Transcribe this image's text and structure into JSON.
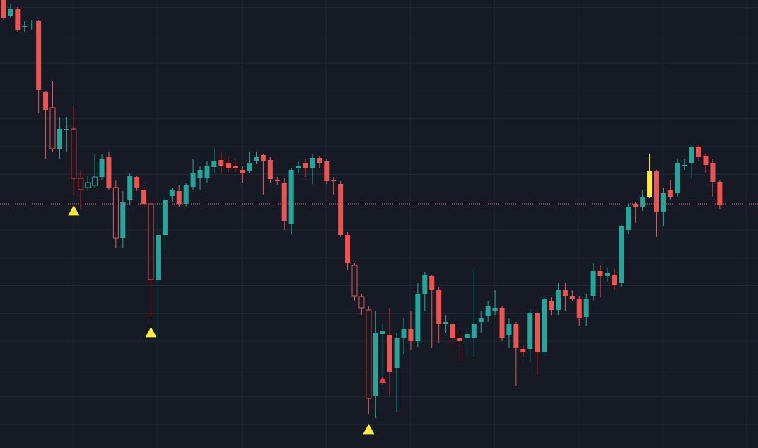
{
  "chart_data": {
    "type": "candlestick",
    "ylim": [
      0,
      633
    ],
    "up_color": "#26a69a",
    "down_color": "#ef5350",
    "grid": true,
    "hollow": [
      7,
      10,
      11,
      12,
      13,
      16,
      21,
      50,
      51,
      52
    ],
    "highlight": {
      "index": 92,
      "color": "#ffeb3b"
    },
    "price_line": 345,
    "price_line_color": "#ef5350",
    "open": [
      633,
      611,
      620,
      596,
      598,
      603,
      503,
      481,
      423,
      451,
      451,
      381,
      368,
      371,
      383,
      411,
      368,
      297,
      351,
      383,
      365,
      345,
      238,
      301,
      356,
      363,
      345,
      369,
      381,
      381,
      397,
      407,
      403,
      399,
      393,
      391,
      405,
      414,
      407,
      378,
      375,
      317,
      395,
      403,
      396,
      410,
      405,
      378,
      373,
      301,
      258,
      214,
      195,
      73,
      161,
      160,
      113,
      155,
      168,
      151,
      218,
      243,
      223,
      175,
      175,
      156,
      155,
      155,
      178,
      187,
      193,
      198,
      159,
      175,
      140,
      140,
      191,
      135,
      208,
      195,
      223,
      215,
      211,
      185,
      215,
      250,
      243,
      245,
      233,
      308,
      345,
      341,
      355,
      391,
      333,
      365,
      360,
      400,
      403,
      426,
      413,
      403,
      376
    ],
    "high": [
      633,
      628,
      623,
      603,
      605,
      605,
      505,
      518,
      468,
      468,
      483,
      393,
      385,
      415,
      415,
      418,
      378,
      363,
      388,
      385,
      371,
      353,
      318,
      358,
      368,
      371,
      375,
      408,
      398,
      405,
      423,
      418,
      413,
      408,
      398,
      418,
      418,
      415,
      411,
      383,
      381,
      395,
      405,
      408,
      415,
      413,
      408,
      383,
      377,
      305,
      261,
      218,
      201,
      193,
      175,
      198,
      163,
      183,
      193,
      233,
      248,
      245,
      228,
      188,
      178,
      163,
      168,
      251,
      193,
      208,
      223,
      201,
      183,
      178,
      145,
      198,
      195,
      215,
      213,
      233,
      233,
      223,
      215,
      218,
      261,
      258,
      255,
      253,
      315,
      345,
      348,
      365,
      415,
      393,
      368,
      378,
      408,
      408,
      428,
      428,
      415,
      408,
      378
    ],
    "low": [
      605,
      608,
      588,
      588,
      591,
      473,
      408,
      418,
      408,
      418,
      358,
      338,
      363,
      368,
      378,
      365,
      283,
      283,
      343,
      363,
      338,
      183,
      153,
      275,
      348,
      341,
      341,
      365,
      365,
      375,
      388,
      388,
      388,
      388,
      375,
      388,
      401,
      358,
      375,
      371,
      308,
      303,
      388,
      383,
      373,
      395,
      373,
      358,
      298,
      251,
      208,
      188,
      48,
      43,
      88,
      73,
      51,
      133,
      138,
      143,
      193,
      141,
      148,
      163,
      143,
      123,
      133,
      128,
      163,
      178,
      188,
      151,
      141,
      88,
      128,
      121,
      103,
      131,
      188,
      188,
      193,
      208,
      173,
      173,
      208,
      213,
      235,
      223,
      228,
      303,
      318,
      335,
      353,
      298,
      313,
      351,
      355,
      393,
      381,
      405,
      388,
      355,
      338
    ],
    "close": [
      608,
      620,
      591,
      596,
      598,
      506,
      478,
      423,
      451,
      451,
      381,
      365,
      375,
      383,
      408,
      368,
      297,
      348,
      385,
      368,
      345,
      238,
      301,
      351,
      365,
      345,
      371,
      388,
      393,
      398,
      406,
      399,
      395,
      395,
      388,
      403,
      411,
      406,
      380,
      377,
      321,
      393,
      399,
      395,
      410,
      403,
      377,
      377,
      301,
      261,
      215,
      198,
      70,
      163,
      165,
      108,
      155,
      168,
      151,
      218,
      245,
      223,
      175,
      178,
      155,
      151,
      161,
      175,
      183,
      200,
      198,
      156,
      175,
      141,
      135,
      191,
      135,
      211,
      195,
      223,
      215,
      211,
      183,
      211,
      250,
      243,
      247,
      230,
      313,
      341,
      341,
      355,
      391,
      333,
      360,
      355,
      403,
      400,
      426,
      411,
      400,
      376,
      343
    ],
    "markers": [
      {
        "index": 10,
        "value": 335,
        "color": "#ffeb3b"
      },
      {
        "index": 21,
        "value": 163,
        "color": "#ffeb3b"
      },
      {
        "index": 52,
        "value": 26,
        "color": "#ffeb3b"
      },
      {
        "index": 54,
        "value": 96,
        "color": "#f23645"
      }
    ]
  }
}
